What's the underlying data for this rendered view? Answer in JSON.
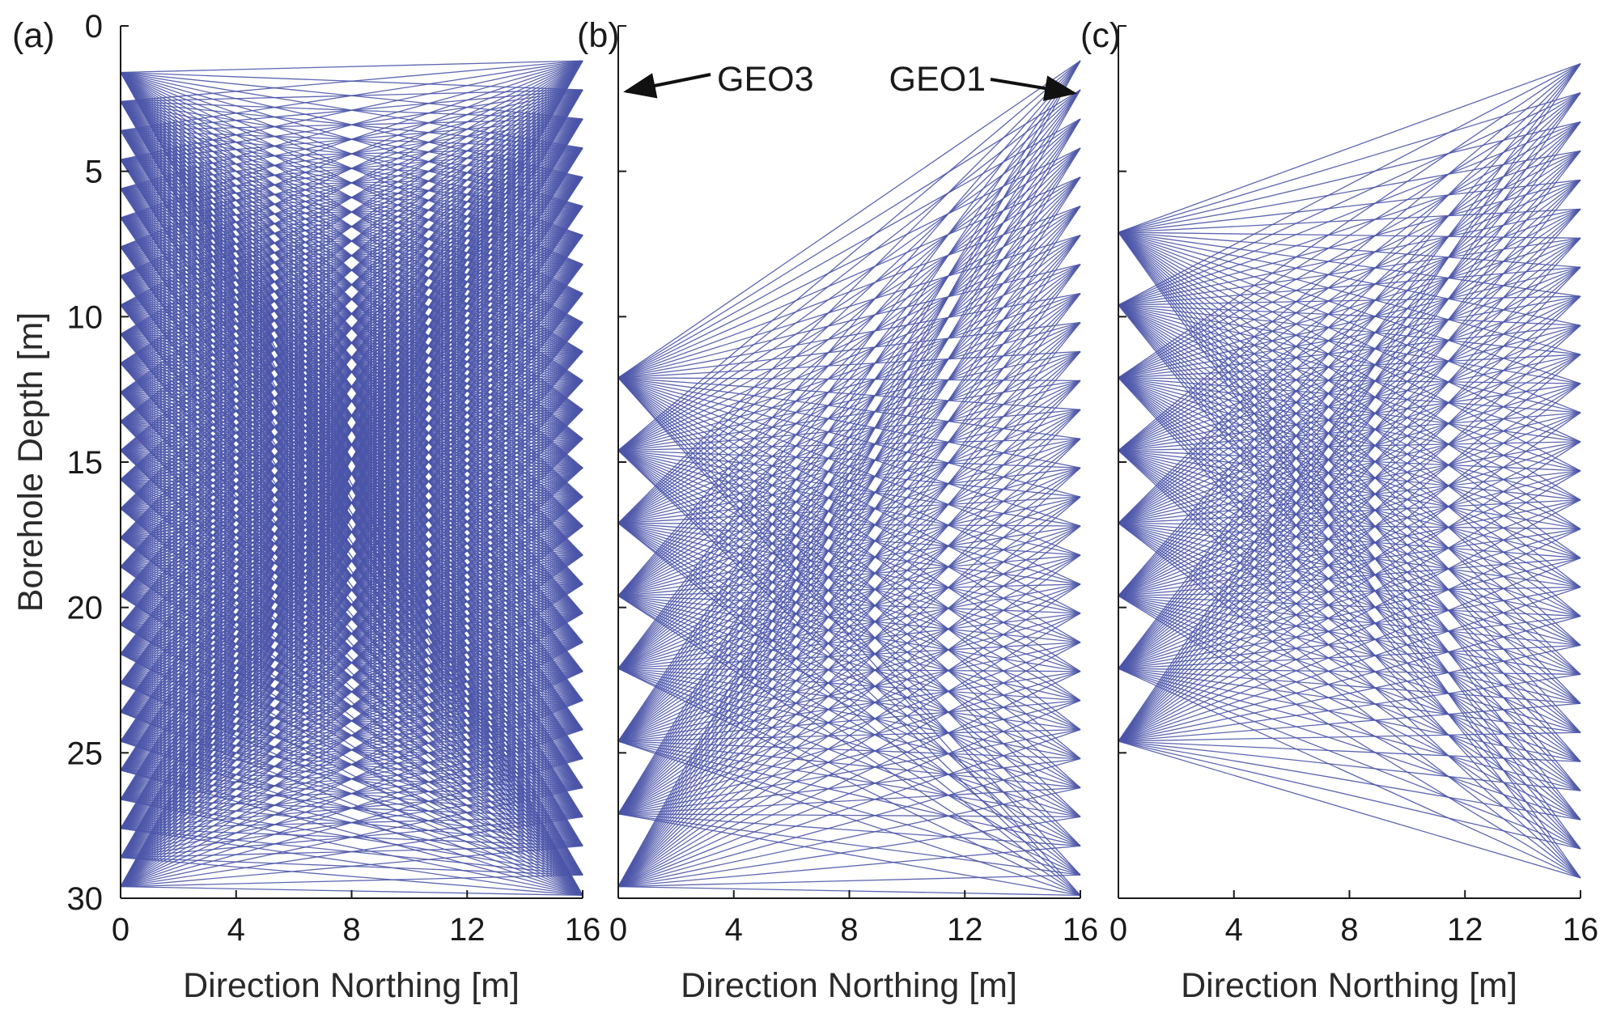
{
  "colors": {
    "ray": "#4b55a8",
    "axis": "#1a1a1a",
    "text": "#1a1a1a"
  },
  "chart_data": [
    {
      "panel": "(a)",
      "type": "line",
      "xlabel": "Direction Northing [m]",
      "ylabel": "Borehole Depth [m]",
      "xlim": [
        0,
        16
      ],
      "ylim": [
        30,
        0
      ],
      "y_reversed": true,
      "xticks": [
        "0",
        "4",
        "8",
        "12",
        "16"
      ],
      "yticks": [
        "0",
        "5",
        "10",
        "15",
        "20",
        "25",
        "30"
      ],
      "series": [
        {
          "source_x": 0,
          "receiver_x": 16,
          "sources_depth": [
            1.6,
            2.6,
            3.6,
            4.6,
            5.6,
            6.6,
            7.6,
            8.6,
            9.6,
            10.6,
            11.6,
            12.6,
            13.6,
            14.6,
            15.6,
            16.6,
            17.6,
            18.6,
            19.6,
            20.6,
            21.6,
            22.6,
            23.6,
            24.6,
            25.6,
            26.6,
            27.6,
            28.6,
            29.6
          ],
          "receivers_depth": [
            1.2,
            2.2,
            3.2,
            4.2,
            5.2,
            6.2,
            7.2,
            8.2,
            9.2,
            10.2,
            11.2,
            12.2,
            13.2,
            14.2,
            15.2,
            16.2,
            17.2,
            18.2,
            19.2,
            20.2,
            21.2,
            22.2,
            23.2,
            24.2,
            25.2,
            26.2,
            27.2,
            28.2,
            29.2,
            29.9
          ]
        }
      ]
    },
    {
      "panel": "(b)",
      "type": "line",
      "xlabel": "Direction Northing [m]",
      "xlim": [
        0,
        16
      ],
      "ylim": [
        30,
        0
      ],
      "y_reversed": true,
      "xticks": [
        "0",
        "4",
        "8",
        "12",
        "16"
      ],
      "annotations": [
        {
          "text": "GEO3",
          "points_to": [
            0,
            2.3
          ]
        },
        {
          "text": "GEO1",
          "points_to": [
            16,
            2.3
          ]
        }
      ],
      "series": [
        {
          "source_x": 0,
          "receiver_x": 16,
          "sources_depth": [
            12.1,
            14.6,
            17.1,
            19.6,
            22.1,
            24.6,
            27.1,
            29.6
          ],
          "receivers_depth": [
            1.2,
            2.2,
            3.2,
            4.2,
            5.2,
            6.2,
            7.2,
            8.2,
            9.2,
            10.2,
            11.2,
            12.2,
            13.2,
            14.2,
            15.2,
            16.2,
            17.2,
            18.2,
            19.2,
            20.2,
            21.2,
            22.2,
            23.2,
            24.2,
            25.2,
            26.2,
            27.2,
            28.2,
            29.2,
            29.9
          ]
        }
      ]
    },
    {
      "panel": "(c)",
      "type": "line",
      "xlabel": "Direction Northing [m]",
      "xlim": [
        0,
        16
      ],
      "ylim": [
        30,
        0
      ],
      "y_reversed": true,
      "xticks": [
        "0",
        "4",
        "8",
        "12",
        "16"
      ],
      "series": [
        {
          "source_x": 0,
          "receiver_x": 16,
          "sources_depth": [
            7.1,
            9.6,
            12.1,
            14.6,
            17.1,
            19.6,
            22.1,
            24.6
          ],
          "receivers_depth": [
            1.3,
            2.3,
            3.3,
            4.3,
            5.3,
            6.3,
            7.3,
            8.3,
            9.3,
            10.3,
            11.3,
            12.3,
            13.3,
            14.3,
            15.3,
            16.3,
            17.3,
            18.3,
            19.3,
            20.3,
            21.3,
            22.3,
            23.3,
            24.3,
            25.3,
            26.3,
            27.3,
            28.3,
            29.3
          ]
        }
      ]
    }
  ]
}
